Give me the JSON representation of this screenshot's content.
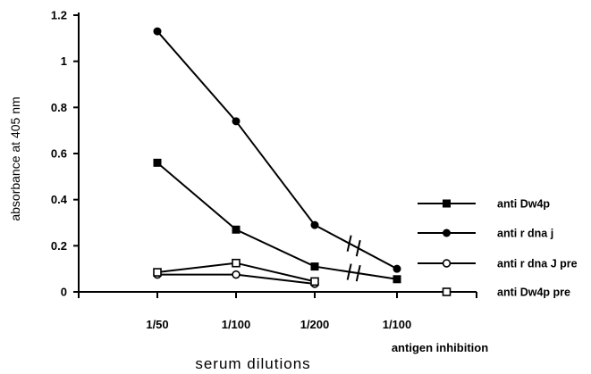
{
  "chart_data": {
    "type": "line",
    "title": "",
    "xlabel": "serum  dilutions",
    "ylabel": "absorbance at 405 nm",
    "ylim": [
      0,
      1.2
    ],
    "yticks": [
      "0",
      "0.2",
      "0.4",
      "0.6",
      "0.8",
      "1",
      "1.2"
    ],
    "categories": [
      "1/50",
      "1/100",
      "1/200",
      "1/100"
    ],
    "category_sublabels": [
      "",
      "",
      "",
      "antigen  inhibition"
    ],
    "axis_break_between": [
      2,
      3
    ],
    "grid": false,
    "legend_position": "right",
    "series": [
      {
        "name": "anti Dw4p",
        "marker": "square-filled",
        "values": [
          0.56,
          0.27,
          0.11,
          0.055
        ]
      },
      {
        "name": "anti r dna j",
        "marker": "circle-filled",
        "values": [
          1.13,
          0.74,
          0.29,
          0.1
        ]
      },
      {
        "name": "anti r dna J pre",
        "marker": "circle-open",
        "values": [
          0.075,
          0.075,
          0.035,
          null
        ]
      },
      {
        "name": "anti Dw4p pre",
        "marker": "square-open",
        "values": [
          0.085,
          0.125,
          0.045,
          null
        ]
      }
    ]
  }
}
